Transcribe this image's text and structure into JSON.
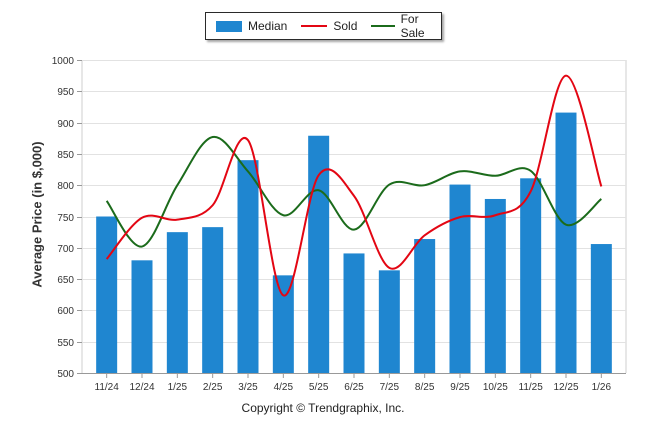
{
  "chart_data": {
    "type": "bar",
    "categories": [
      "11/24",
      "12/24",
      "1/25",
      "2/25",
      "3/25",
      "4/25",
      "5/25",
      "6/25",
      "7/25",
      "8/25",
      "9/25",
      "10/25",
      "11/25",
      "12/25",
      "1/26"
    ],
    "series": [
      {
        "name": "Median",
        "kind": "bar",
        "color": "#1f86d0",
        "values": [
          750,
          680,
          725,
          733,
          840,
          656,
          879,
          691,
          664,
          714,
          801,
          778,
          811,
          916,
          706
        ]
      },
      {
        "name": "Sold",
        "kind": "line",
        "color": "#e30613",
        "values": [
          682,
          748,
          745,
          768,
          872,
          624,
          816,
          783,
          668,
          720,
          749,
          752,
          790,
          975,
          798
        ]
      },
      {
        "name": "For Sale",
        "kind": "line",
        "color": "#1b6b1b",
        "values": [
          775,
          702,
          800,
          877,
          822,
          752,
          792,
          729,
          801,
          800,
          822,
          815,
          823,
          737,
          778
        ]
      }
    ],
    "ylabel": "Average Price (in $,000)",
    "ylim": [
      500,
      1000
    ],
    "yticks": [
      500,
      550,
      600,
      650,
      700,
      750,
      800,
      850,
      900,
      950,
      1000
    ],
    "legend": "top-center",
    "grid": true
  },
  "footer": {
    "copyright": "Copyright © Trendgraphix, Inc."
  }
}
